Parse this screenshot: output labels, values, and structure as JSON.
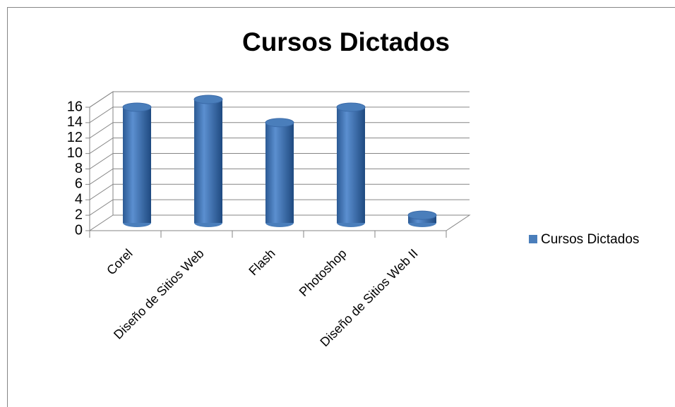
{
  "chart_data": {
    "type": "bar3d",
    "title": "Cursos Dictados",
    "categories": [
      "Corel",
      "Diseño de Sitios Web",
      "Flash",
      "Photoshop",
      "Diseño de Sitios Web II"
    ],
    "series": [
      {
        "name": "Cursos Dictados",
        "color": "#4a7ebb",
        "values": [
          15,
          16,
          13,
          15,
          1
        ]
      }
    ],
    "ylim": [
      0,
      16
    ],
    "yticks": [
      0,
      2,
      4,
      6,
      8,
      10,
      12,
      14,
      16
    ],
    "grid": true,
    "legend": "right"
  }
}
